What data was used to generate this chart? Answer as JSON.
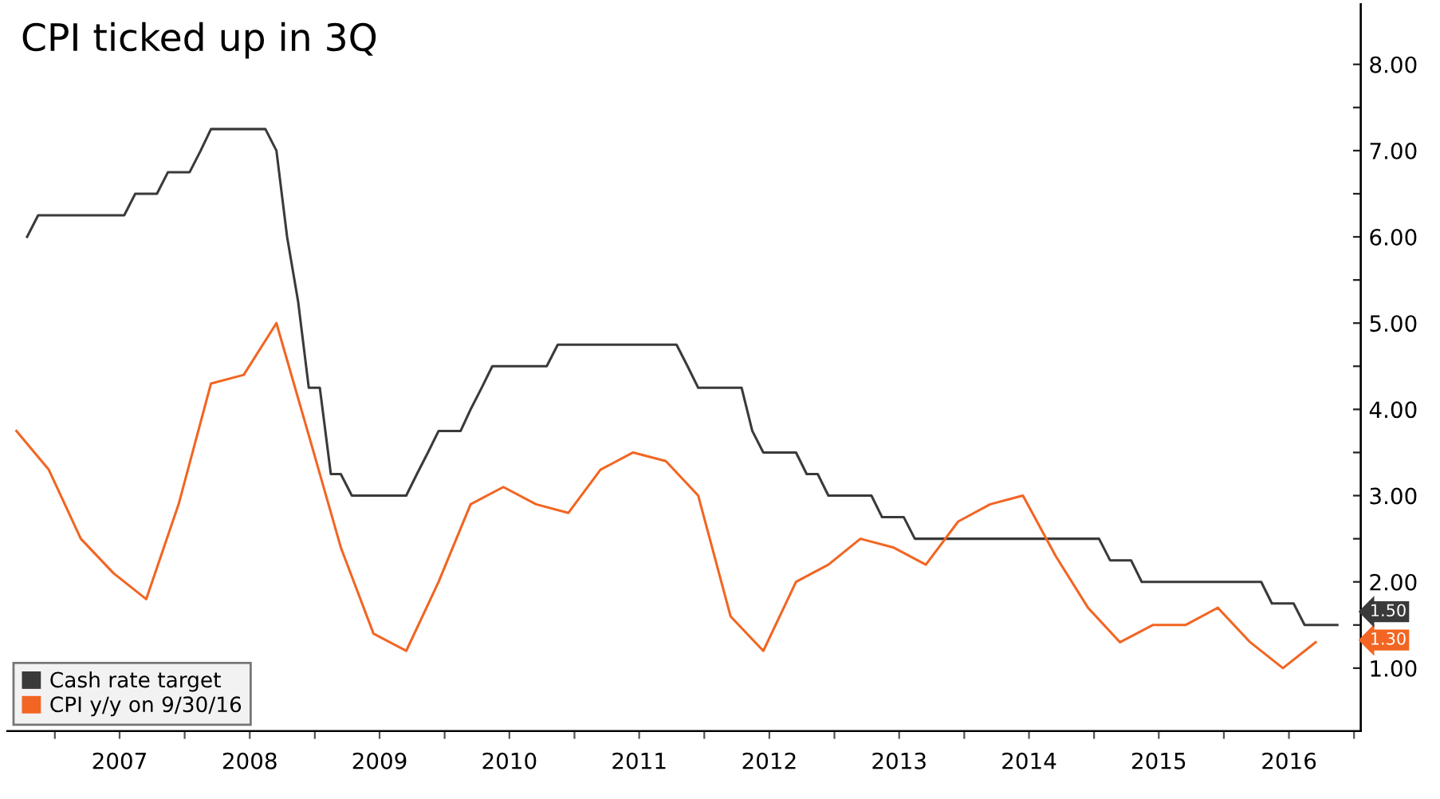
{
  "chart_data": {
    "type": "line",
    "title": "CPI ticked up in 3Q",
    "xlim": [
      "2006-08-20",
      "2017-01-20"
    ],
    "xticks": [
      {
        "value": "2007-01-01",
        "label": null
      },
      {
        "value": "2007-07-02",
        "label": "2007"
      },
      {
        "value": "2008-01-01",
        "label": null
      },
      {
        "value": "2008-07-02",
        "label": "2008"
      },
      {
        "value": "2009-01-01",
        "label": null
      },
      {
        "value": "2009-07-02",
        "label": "2009"
      },
      {
        "value": "2010-01-01",
        "label": null
      },
      {
        "value": "2010-07-02",
        "label": "2010"
      },
      {
        "value": "2011-01-01",
        "label": null
      },
      {
        "value": "2011-07-02",
        "label": "2011"
      },
      {
        "value": "2012-01-01",
        "label": null
      },
      {
        "value": "2012-07-02",
        "label": "2012"
      },
      {
        "value": "2013-01-01",
        "label": null
      },
      {
        "value": "2013-07-02",
        "label": "2013"
      },
      {
        "value": "2014-01-01",
        "label": null
      },
      {
        "value": "2014-07-02",
        "label": "2014"
      },
      {
        "value": "2015-01-01",
        "label": null
      },
      {
        "value": "2015-07-02",
        "label": "2015"
      },
      {
        "value": "2016-01-01",
        "label": null
      },
      {
        "value": "2016-07-02",
        "label": "2016"
      },
      {
        "value": "2017-01-01",
        "label": null
      }
    ],
    "y2lim": [
      0.27,
      8.7
    ],
    "y2ticks": [
      {
        "value": 1,
        "label": "1.00"
      },
      {
        "value": 1.5,
        "label": null
      },
      {
        "value": 2,
        "label": "2.00"
      },
      {
        "value": 2.5,
        "label": null
      },
      {
        "value": 3,
        "label": "3.00"
      },
      {
        "value": 3.5,
        "label": null
      },
      {
        "value": 4,
        "label": "4.00"
      },
      {
        "value": 4.5,
        "label": null
      },
      {
        "value": 5,
        "label": "5.00"
      },
      {
        "value": 5.5,
        "label": null
      },
      {
        "value": 6,
        "label": "6.00"
      },
      {
        "value": 6.5,
        "label": null
      },
      {
        "value": 7,
        "label": "7.00"
      },
      {
        "value": 7.5,
        "label": null
      },
      {
        "value": 8,
        "label": "8.00"
      }
    ],
    "grid": false,
    "legend": "bottom left",
    "series": [
      {
        "name": "Cash rate target",
        "color": "#3a3a3a",
        "axis": "y2",
        "x": [
          "2006-10",
          "2006-11",
          "2007-07",
          "2007-08",
          "2007-10",
          "2007-11",
          "2008-01",
          "2008-02",
          "2008-03",
          "2008-08",
          "2008-09",
          "2008-10",
          "2008-11",
          "2008-12",
          "2009-01",
          "2009-02",
          "2009-03",
          "2009-04",
          "2009-09",
          "2009-10",
          "2009-11",
          "2009-12",
          "2010-02",
          "2010-03",
          "2010-04",
          "2010-05",
          "2010-10",
          "2010-11",
          "2011-10",
          "2011-11",
          "2011-12",
          "2012-04",
          "2012-05",
          "2012-06",
          "2012-09",
          "2012-10",
          "2012-11",
          "2012-12",
          "2013-04",
          "2013-05",
          "2013-07",
          "2013-08",
          "2015-01",
          "2015-02",
          "2015-04",
          "2015-05",
          "2016-04",
          "2016-05",
          "2016-07",
          "2016-08",
          "2016-11"
        ],
        "values": [
          6.0,
          6.25,
          6.25,
          6.5,
          6.5,
          6.75,
          6.75,
          7.0,
          7.25,
          7.25,
          7.0,
          6.0,
          5.25,
          4.25,
          4.25,
          3.25,
          3.25,
          3.0,
          3.0,
          3.25,
          3.5,
          3.75,
          3.75,
          4.0,
          4.25,
          4.5,
          4.5,
          4.75,
          4.75,
          4.5,
          4.25,
          4.25,
          3.75,
          3.5,
          3.5,
          3.25,
          3.25,
          3.0,
          3.0,
          2.75,
          2.75,
          2.5,
          2.5,
          2.25,
          2.25,
          2.0,
          2.0,
          1.75,
          1.75,
          1.5,
          1.5
        ]
      },
      {
        "name": "CPI y/y on 9/30/16",
        "color": "#f26522",
        "axis": "y2",
        "x": [
          "2006-09",
          "2006-12",
          "2007-03",
          "2007-06",
          "2007-09",
          "2007-12",
          "2008-03",
          "2008-06",
          "2008-09",
          "2008-12",
          "2009-03",
          "2009-06",
          "2009-09",
          "2009-12",
          "2010-03",
          "2010-06",
          "2010-09",
          "2010-12",
          "2011-03",
          "2011-06",
          "2011-09",
          "2011-12",
          "2012-03",
          "2012-06",
          "2012-09",
          "2012-12",
          "2013-03",
          "2013-06",
          "2013-09",
          "2013-12",
          "2014-03",
          "2014-06",
          "2014-09",
          "2014-12",
          "2015-03",
          "2015-06",
          "2015-09",
          "2015-12",
          "2016-03",
          "2016-06",
          "2016-09"
        ],
        "values": [
          3.75,
          3.3,
          2.5,
          2.1,
          1.8,
          2.9,
          4.3,
          4.4,
          5.0,
          3.7,
          2.4,
          1.4,
          1.2,
          2.0,
          2.9,
          3.1,
          2.9,
          2.8,
          3.3,
          3.5,
          3.4,
          3.0,
          1.6,
          1.2,
          2.0,
          2.2,
          2.5,
          2.4,
          2.2,
          2.7,
          2.9,
          3.0,
          2.3,
          1.7,
          1.3,
          1.5,
          1.5,
          1.7,
          1.3,
          1.0,
          1.3
        ]
      }
    ],
    "annotations": [
      "1.50",
      "1.30"
    ]
  }
}
